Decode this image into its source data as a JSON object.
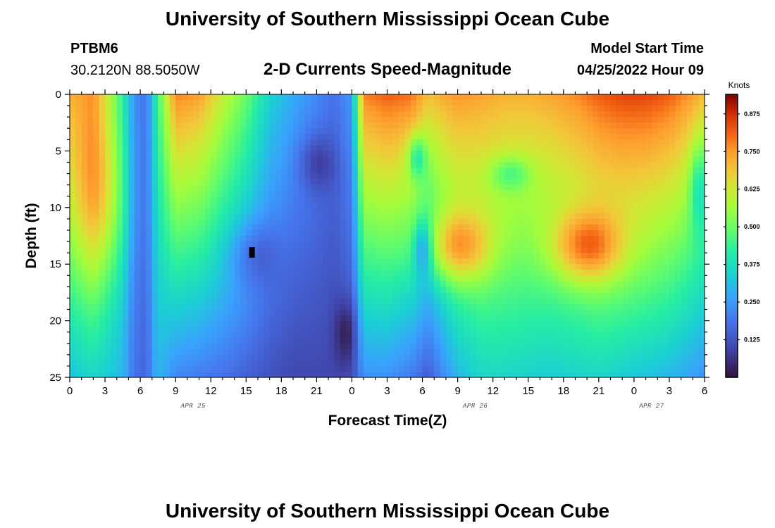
{
  "page": {
    "title": "University of Southern Mississippi Ocean Cube",
    "footer_title": "University of Southern Mississippi Ocean Cube"
  },
  "station": {
    "id": "PTBM6",
    "coords": "30.2120N  88.5050W"
  },
  "model": {
    "label": "Model Start Time",
    "start": "04/25/2022 Hour 09"
  },
  "chart_data": {
    "type": "heatmap",
    "subtitle": "2-D Currents Speed-Magnitude",
    "xlabel": "Forecast Time(Z)",
    "ylabel": "Depth (ft)",
    "x_ticks": [
      "0",
      "3",
      "6",
      "9",
      "12",
      "15",
      "18",
      "21",
      "0",
      "3",
      "6",
      "9",
      "12",
      "15",
      "18",
      "21",
      "0",
      "3",
      "6"
    ],
    "date_labels": [
      {
        "text": "APR 25",
        "at_tick": 3.5
      },
      {
        "text": "APR 26",
        "at_tick": 11.5
      },
      {
        "text": "APR 27",
        "at_tick": 16.5
      }
    ],
    "y_ticks": [
      0,
      5,
      10,
      15,
      20,
      25
    ],
    "ylim": [
      0,
      25
    ],
    "hours_range": [
      0,
      54
    ],
    "colorbar": {
      "title": "Knots",
      "ticks": [
        "0.875",
        "0.750",
        "0.625",
        "0.500",
        "0.375",
        "0.250",
        "0.125"
      ],
      "range": [
        0,
        0.94
      ]
    },
    "speed_profile": {
      "hours": [
        0,
        2,
        4.5,
        5.5,
        6.5,
        7.5,
        9,
        11,
        13,
        15,
        17,
        19,
        21,
        22.5,
        24,
        25,
        27,
        29,
        30.5,
        32,
        33,
        35,
        37,
        39,
        41,
        43,
        45,
        47,
        49,
        51,
        53,
        54
      ],
      "surface": [
        0.7,
        0.72,
        0.4,
        0.22,
        0.18,
        0.45,
        0.78,
        0.75,
        0.62,
        0.5,
        0.35,
        0.28,
        0.22,
        0.18,
        0.25,
        0.78,
        0.82,
        0.8,
        0.7,
        0.74,
        0.76,
        0.74,
        0.72,
        0.72,
        0.74,
        0.77,
        0.82,
        0.85,
        0.85,
        0.82,
        0.75,
        0.7
      ],
      "bottom": [
        0.32,
        0.36,
        0.3,
        0.18,
        0.16,
        0.3,
        0.22,
        0.2,
        0.18,
        0.15,
        0.12,
        0.1,
        0.1,
        0.1,
        0.12,
        0.24,
        0.24,
        0.2,
        0.14,
        0.24,
        0.3,
        0.36,
        0.36,
        0.35,
        0.34,
        0.35,
        0.36,
        0.34,
        0.32,
        0.3,
        0.26,
        0.24
      ]
    },
    "features": [
      {
        "hour": 2.5,
        "depth": 9,
        "sh": 2.5,
        "sd": 8,
        "amp": 0.18
      },
      {
        "hour": 15.5,
        "depth": 14,
        "sh": 2.0,
        "sd": 3.0,
        "amp": -0.1
      },
      {
        "hour": 21,
        "depth": 6,
        "sh": 1.5,
        "sd": 2.5,
        "amp": -0.1
      },
      {
        "hour": 23.5,
        "depth": 21,
        "sh": 1.0,
        "sd": 3.0,
        "amp": -0.1
      },
      {
        "hour": 33,
        "depth": 13.5,
        "sh": 2.8,
        "sd": 3.2,
        "amp": 0.26
      },
      {
        "hour": 44,
        "depth": 13.5,
        "sh": 3.0,
        "sd": 3.2,
        "amp": 0.27
      },
      {
        "hour": 30,
        "depth": 13.5,
        "sh": 0.8,
        "sd": 2.5,
        "amp": -0.2
      },
      {
        "hour": 29.5,
        "depth": 5.5,
        "sh": 0.8,
        "sd": 2.0,
        "amp": -0.2
      },
      {
        "hour": 37.5,
        "depth": 7,
        "sh": 1.8,
        "sd": 1.6,
        "amp": -0.14
      },
      {
        "hour": 53.5,
        "depth": 8,
        "sh": 0.8,
        "sd": 4.0,
        "amp": -0.16
      }
    ],
    "missing_marker": {
      "hour": 15.5,
      "depth": 14
    }
  },
  "colors": {
    "min": "#30123b",
    "max": "#7a0403"
  }
}
